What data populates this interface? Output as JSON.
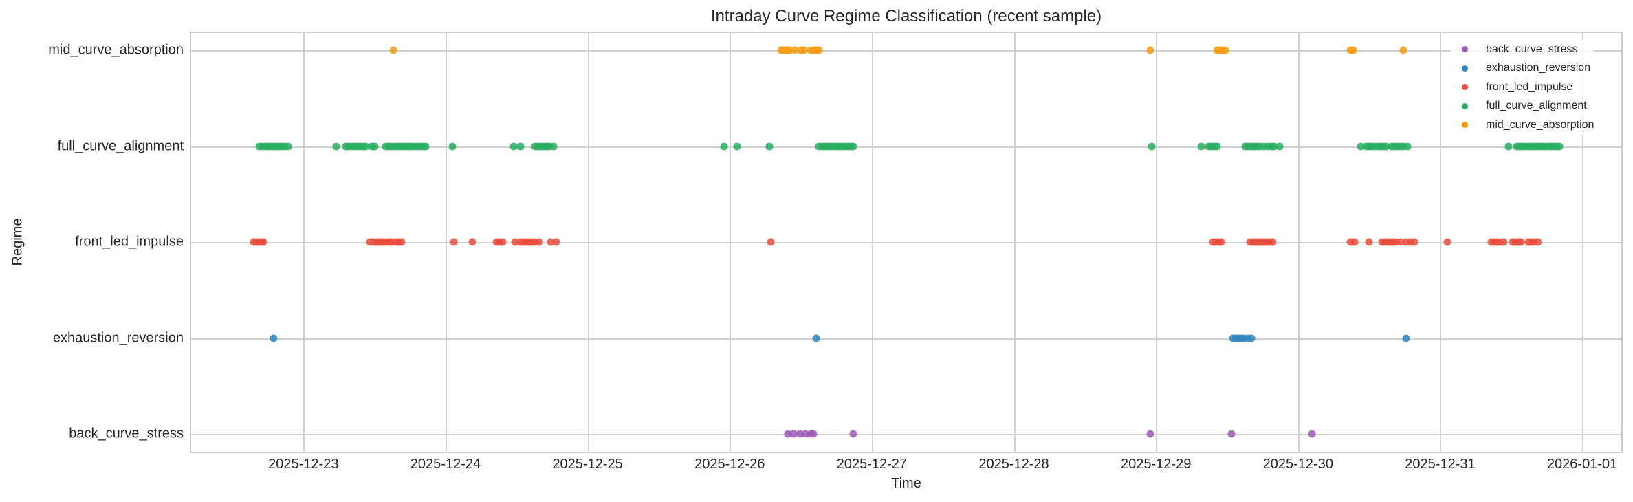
{
  "chart_data": {
    "type": "scatter",
    "title": "Intraday Curve Regime Classification (recent sample)",
    "xlabel": "Time",
    "ylabel": "Regime",
    "x_axis": {
      "type": "datetime",
      "range": [
        "2025-12-22T04:50",
        "2026-01-01T06:50"
      ],
      "ticks": [
        "2025-12-23",
        "2025-12-24",
        "2025-12-25",
        "2025-12-26",
        "2025-12-27",
        "2025-12-28",
        "2025-12-29",
        "2025-12-30",
        "2025-12-31",
        "2026-01-01"
      ],
      "tick_offsets_days": [
        1,
        2,
        3,
        4,
        5,
        6,
        7,
        8,
        9,
        10
      ],
      "origin": "2025-12-22T00:00",
      "min_offset_days": 0.2,
      "max_offset_days": 10.285
    },
    "y_axis": {
      "categories": [
        "back_curve_stress",
        "exhaustion_reversion",
        "front_led_impulse",
        "full_curve_alignment",
        "mid_curve_absorption"
      ]
    },
    "grid": true,
    "legend_position": "upper right",
    "point_units": "days since 2025-12-22 00:00",
    "series": [
      {
        "name": "back_curve_stress",
        "color": "#9b59b6",
        "points_offset_days": [
          4.41,
          4.45,
          4.49,
          4.53,
          4.57,
          4.59,
          4.87,
          6.96,
          7.53,
          8.1
        ]
      },
      {
        "name": "exhaustion_reversion",
        "color": "#2e86c1",
        "points_offset_days": [
          0.79,
          4.61,
          7.54,
          7.56,
          7.58,
          7.6,
          7.62,
          7.65,
          7.67,
          8.76
        ]
      },
      {
        "name": "front_led_impulse",
        "color": "#e74c3c",
        "points_offset_days": [
          0.65,
          0.67,
          0.69,
          0.71,
          0.72,
          1.47,
          1.49,
          1.51,
          1.53,
          1.55,
          1.57,
          1.59,
          1.61,
          1.62,
          1.65,
          1.67,
          1.69,
          2.06,
          2.19,
          2.36,
          2.38,
          2.4,
          2.49,
          2.53,
          2.55,
          2.57,
          2.59,
          2.61,
          2.63,
          2.66,
          2.74,
          2.78,
          4.29,
          7.4,
          7.42,
          7.44,
          7.46,
          7.66,
          7.68,
          7.7,
          7.72,
          7.74,
          7.76,
          7.78,
          7.8,
          7.82,
          8.37,
          8.4,
          8.5,
          8.59,
          8.61,
          8.63,
          8.65,
          8.67,
          8.69,
          8.72,
          8.76,
          8.79,
          8.82,
          9.05,
          9.36,
          9.38,
          9.4,
          9.42,
          9.45,
          9.51,
          9.53,
          9.55,
          9.57,
          9.62,
          9.64,
          9.66,
          9.69
        ]
      },
      {
        "name": "full_curve_alignment",
        "color": "#27ae60",
        "points_offset_days": [
          0.69,
          0.71,
          0.73,
          0.75,
          0.77,
          0.79,
          0.81,
          0.83,
          0.85,
          0.87,
          0.89,
          1.23,
          1.3,
          1.32,
          1.34,
          1.36,
          1.38,
          1.4,
          1.42,
          1.44,
          1.48,
          1.5,
          1.58,
          1.6,
          1.62,
          1.64,
          1.66,
          1.68,
          1.7,
          1.72,
          1.74,
          1.76,
          1.78,
          1.8,
          1.82,
          1.84,
          1.86,
          2.05,
          2.48,
          2.53,
          2.63,
          2.65,
          2.67,
          2.69,
          2.71,
          2.73,
          2.76,
          3.96,
          4.05,
          4.28,
          4.63,
          4.65,
          4.67,
          4.69,
          4.71,
          4.73,
          4.75,
          4.77,
          4.79,
          4.81,
          4.83,
          4.85,
          4.87,
          6.97,
          7.32,
          7.37,
          7.39,
          7.41,
          7.43,
          7.63,
          7.65,
          7.67,
          7.69,
          7.71,
          7.73,
          7.76,
          7.79,
          7.81,
          7.83,
          7.87,
          8.44,
          8.48,
          8.5,
          8.52,
          8.54,
          8.56,
          8.58,
          8.6,
          8.62,
          8.66,
          8.68,
          8.7,
          8.72,
          8.74,
          8.77,
          9.48,
          9.54,
          9.56,
          9.58,
          9.6,
          9.62,
          9.64,
          9.66,
          9.68,
          9.7,
          9.72,
          9.74,
          9.76,
          9.78,
          9.8,
          9.82,
          9.84
        ]
      },
      {
        "name": "mid_curve_absorption",
        "color": "#f39c12",
        "points_offset_days": [
          1.63,
          4.36,
          4.38,
          4.4,
          4.42,
          4.46,
          4.5,
          4.52,
          4.57,
          4.59,
          4.61,
          4.63,
          6.96,
          7.43,
          7.45,
          7.47,
          7.49,
          8.37,
          8.39,
          8.74
        ]
      }
    ]
  }
}
